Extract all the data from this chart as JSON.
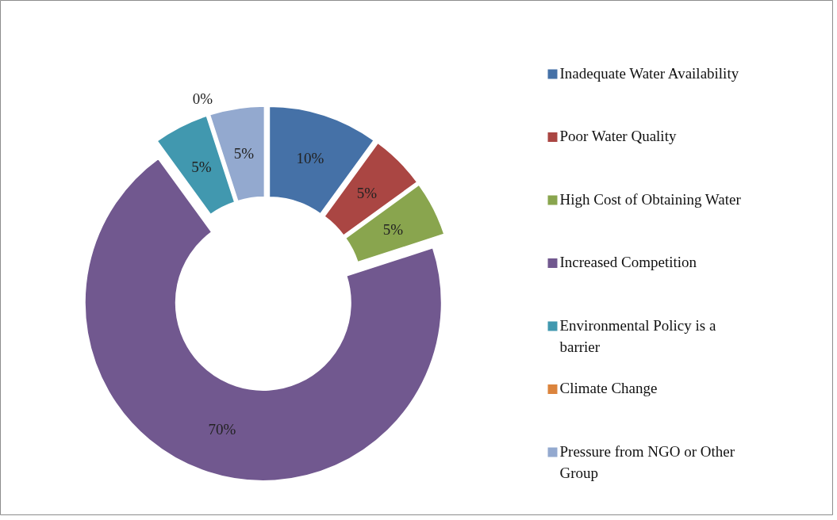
{
  "chart_data": {
    "type": "donut",
    "categories": [
      "Inadequate Water Availability",
      "Poor Water Quality",
      "High Cost of Obtaining Water",
      "Increased Competition",
      "Environmental Policy is a barrier",
      "Climate Change",
      "Pressure from NGO or Other Group"
    ],
    "values": [
      10,
      5,
      5,
      70,
      5,
      0,
      5
    ],
    "value_labels": [
      "10%",
      "5%",
      "5%",
      "70%",
      "5%",
      "0%",
      "5%"
    ],
    "colors": [
      "#4571a7",
      "#aa4643",
      "#89a54e",
      "#71588f",
      "#4198af",
      "#db843d",
      "#93a9cf"
    ],
    "legend": "right"
  }
}
